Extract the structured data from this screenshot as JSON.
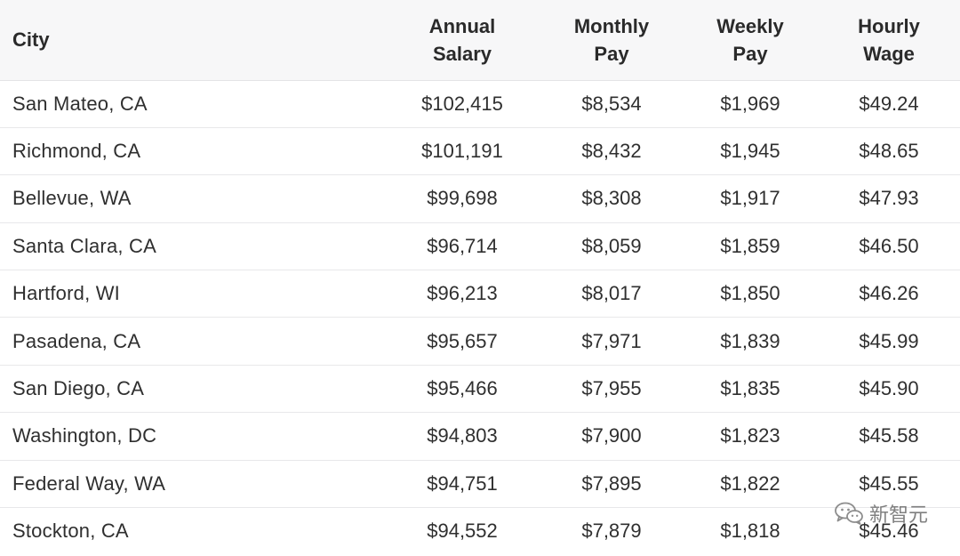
{
  "table": {
    "headers": [
      {
        "lines": [
          "City"
        ]
      },
      {
        "lines": [
          "Annual",
          "Salary"
        ]
      },
      {
        "lines": [
          "Monthly",
          "Pay"
        ]
      },
      {
        "lines": [
          "Weekly",
          "Pay"
        ]
      },
      {
        "lines": [
          "Hourly",
          "Wage"
        ]
      }
    ],
    "rows": [
      [
        "San Mateo, CA",
        "$102,415",
        "$8,534",
        "$1,969",
        "$49.24"
      ],
      [
        "Richmond, CA",
        "$101,191",
        "$8,432",
        "$1,945",
        "$48.65"
      ],
      [
        "Bellevue, WA",
        "$99,698",
        "$8,308",
        "$1,917",
        "$47.93"
      ],
      [
        "Santa Clara, CA",
        "$96,714",
        "$8,059",
        "$1,859",
        "$46.50"
      ],
      [
        "Hartford, WI",
        "$96,213",
        "$8,017",
        "$1,850",
        "$46.26"
      ],
      [
        "Pasadena, CA",
        "$95,657",
        "$7,971",
        "$1,839",
        "$45.99"
      ],
      [
        "San Diego, CA",
        "$95,466",
        "$7,955",
        "$1,835",
        "$45.90"
      ],
      [
        "Washington, DC",
        "$94,803",
        "$7,900",
        "$1,823",
        "$45.58"
      ],
      [
        "Federal Way, WA",
        "$94,751",
        "$7,895",
        "$1,822",
        "$45.55"
      ],
      [
        "Stockton, CA",
        "$94,552",
        "$7,879",
        "$1,818",
        "$45.46"
      ]
    ]
  },
  "watermark": {
    "text": "新智元",
    "icon": "wechat-icon"
  }
}
